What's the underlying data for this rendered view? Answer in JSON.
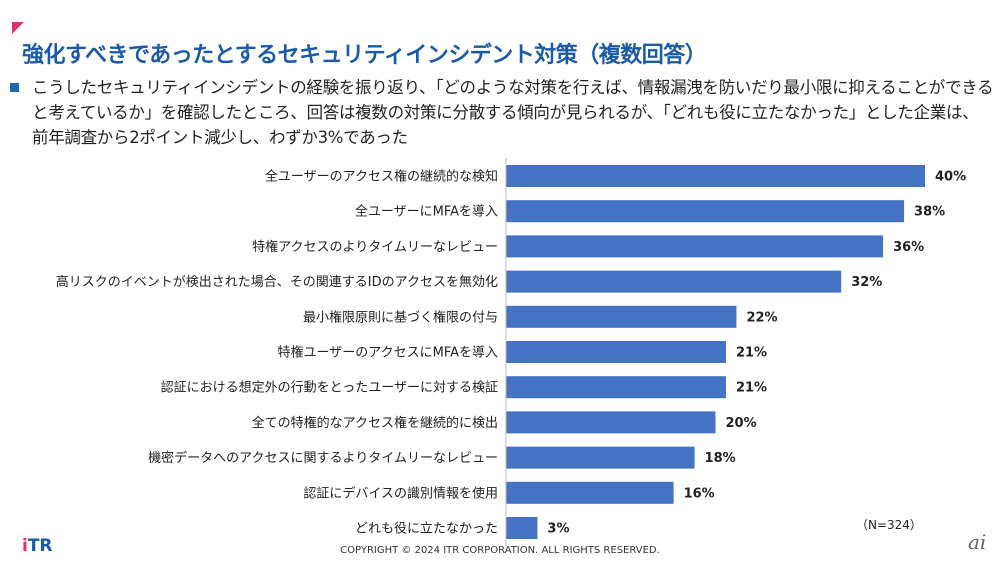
{
  "title": "強化すべきであったとするセキュリティインシデント対策（複数回答）",
  "description": "こうしたセキュリティインシデントの経験を振り返り、「どのような対策を行えば、情報漏洩を防いだり最小限に抑えることができると考えているか」を確認したところ、回答は複数の対策に分散する傾向が見られるが、「どれも役に立たなかった」とした企業は、前年調査から2ポイント減少し、わずか3%であった",
  "sample_size": "（N=324）",
  "logo": {
    "i": "i",
    "rest": "TR"
  },
  "copyright": "COPYRIGHT © 2024 ITR CORPORATION. ALL RIGHTS RESERVED.",
  "watermark": "ai",
  "colors": {
    "bar": "#4472c4",
    "title": "#1a5aa8",
    "accent": "#e0306a"
  },
  "chart_data": {
    "type": "bar",
    "orientation": "horizontal",
    "title": "強化すべきであったとするセキュリティインシデント対策（複数回答）",
    "categories": [
      "全ユーザーのアクセス権の継続的な検知",
      "全ユーザーにMFAを導入",
      "特権アクセスのよりタイムリーなレビュー",
      "高リスクのイベントが検出された場合、その関連するIDのアクセスを無効化",
      "最小権限原則に基づく権限の付与",
      "特権ユーザーのアクセスにMFAを導入",
      "認証における想定外の行動をとったユーザーに対する検証",
      "全ての特権的なアクセス権を継続的に検出",
      "機密データへのアクセスに関するよりタイムリーなレビュー",
      "認証にデバイスの識別情報を使用",
      "どれも役に立たなかった"
    ],
    "values": [
      40,
      38,
      36,
      32,
      22,
      21,
      21,
      20,
      18,
      16,
      3
    ],
    "value_labels": [
      "40%",
      "38%",
      "36%",
      "32%",
      "22%",
      "21%",
      "21%",
      "20%",
      "18%",
      "16%",
      "3%"
    ],
    "unit": "%",
    "xlim": [
      0,
      40
    ],
    "grid": false
  }
}
